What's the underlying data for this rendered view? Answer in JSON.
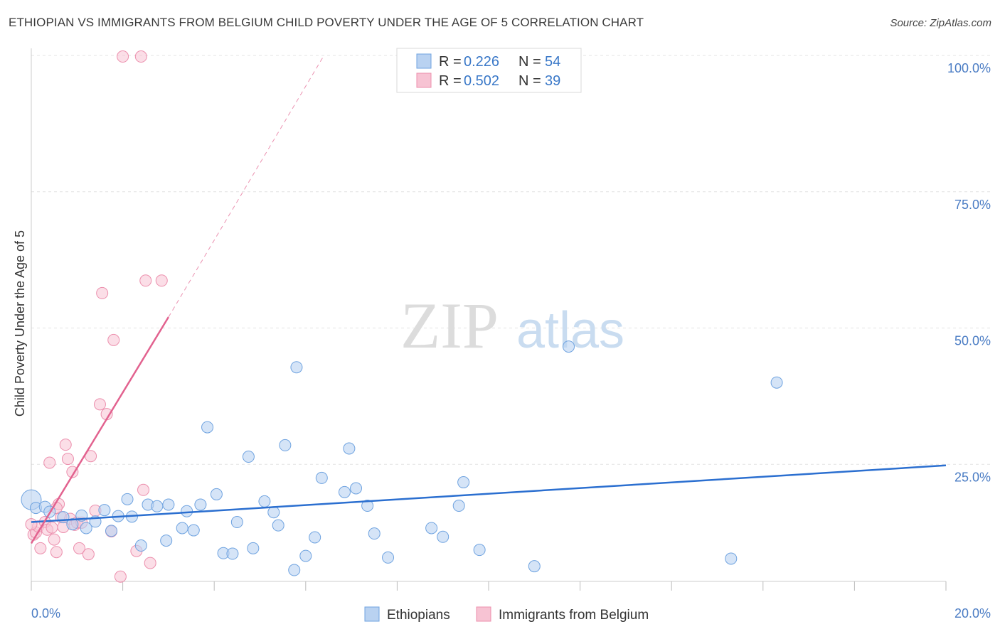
{
  "header": {
    "title": "ETHIOPIAN VS IMMIGRANTS FROM BELGIUM CHILD POVERTY UNDER THE AGE OF 5 CORRELATION CHART",
    "source": "Source: ZipAtlas.com"
  },
  "watermark": {
    "zip": "ZIP",
    "atlas": "atlas"
  },
  "chart_data": {
    "type": "scatter",
    "title": "ETHIOPIAN VS IMMIGRANTS FROM BELGIUM CHILD POVERTY UNDER THE AGE OF 5 CORRELATION CHART",
    "xlabel": "",
    "ylabel": "Child Poverty Under the Age of 5",
    "xlim": [
      0,
      20
    ],
    "ylim": [
      0,
      100
    ],
    "x_tick_labels": {
      "min": "0.0%",
      "max": "20.0%"
    },
    "y_tick_labels": [
      "25.0%",
      "50.0%",
      "75.0%",
      "100.0%"
    ],
    "y_tick_values": [
      25,
      50,
      75,
      100
    ],
    "colors": {
      "ethiopians": "#6fa3e0",
      "ethiopians_fill": "#b9d2f1",
      "ethiopians_line": "#2b6fd0",
      "belgium": "#ec8fad",
      "belgium_fill": "#f7c3d3",
      "belgium_line": "#e2628f",
      "tick_label": "#4a7cc4"
    },
    "legend": {
      "rows": [
        {
          "r_label": "R =",
          "r_value": "0.226",
          "n_label": "N =",
          "n_value": "54"
        },
        {
          "r_label": "R =",
          "r_value": "0.502",
          "n_label": "N =",
          "n_value": "39"
        }
      ]
    },
    "series": [
      {
        "name": "Ethiopians",
        "trend": {
          "x0": 0,
          "y0": 14.4,
          "x1": 20,
          "y1": 24.8
        },
        "points": [
          [
            0.0,
            18.5
          ],
          [
            0.1,
            17.0
          ],
          [
            0.3,
            17.2
          ],
          [
            0.4,
            16.3
          ],
          [
            0.7,
            15.3
          ],
          [
            0.9,
            14.0
          ],
          [
            1.1,
            15.6
          ],
          [
            1.2,
            13.3
          ],
          [
            1.4,
            14.5
          ],
          [
            1.6,
            16.6
          ],
          [
            1.75,
            12.8
          ],
          [
            1.9,
            15.5
          ],
          [
            2.1,
            18.6
          ],
          [
            2.2,
            15.4
          ],
          [
            2.4,
            10.1
          ],
          [
            2.55,
            17.6
          ],
          [
            2.75,
            17.3
          ],
          [
            2.95,
            11.0
          ],
          [
            3.0,
            17.6
          ],
          [
            3.3,
            13.3
          ],
          [
            3.4,
            16.4
          ],
          [
            3.55,
            12.9
          ],
          [
            3.7,
            17.6
          ],
          [
            3.85,
            31.8
          ],
          [
            4.05,
            19.5
          ],
          [
            4.2,
            8.7
          ],
          [
            4.4,
            8.6
          ],
          [
            4.5,
            14.4
          ],
          [
            4.75,
            26.4
          ],
          [
            4.85,
            9.6
          ],
          [
            5.1,
            18.2
          ],
          [
            5.3,
            16.2
          ],
          [
            5.4,
            13.8
          ],
          [
            5.55,
            28.5
          ],
          [
            5.75,
            5.6
          ],
          [
            5.8,
            42.8
          ],
          [
            6.0,
            8.2
          ],
          [
            6.2,
            11.6
          ],
          [
            6.35,
            22.5
          ],
          [
            6.85,
            19.9
          ],
          [
            6.95,
            27.9
          ],
          [
            7.1,
            20.6
          ],
          [
            7.35,
            17.4
          ],
          [
            7.5,
            12.3
          ],
          [
            7.8,
            7.9
          ],
          [
            8.75,
            13.3
          ],
          [
            9.0,
            11.7
          ],
          [
            9.35,
            17.4
          ],
          [
            9.45,
            21.7
          ],
          [
            9.8,
            9.3
          ],
          [
            11.0,
            6.3
          ],
          [
            11.75,
            46.6
          ],
          [
            15.3,
            7.7
          ],
          [
            16.3,
            40.0
          ]
        ]
      },
      {
        "name": "Immigrants from Belgium",
        "trend": {
          "x0": 0,
          "y0": 10.5,
          "x1": 3.0,
          "y1": 52.0
        },
        "trend_extension": {
          "x0": 3.0,
          "y0": 52.0,
          "x1": 6.4,
          "y1": 100
        },
        "points": [
          [
            0.05,
            12.1
          ],
          [
            0.1,
            12.5
          ],
          [
            0.15,
            13.6
          ],
          [
            0.2,
            9.6
          ],
          [
            0.3,
            14.4
          ],
          [
            0.35,
            13.0
          ],
          [
            0.4,
            25.3
          ],
          [
            0.45,
            13.4
          ],
          [
            0.5,
            11.2
          ],
          [
            0.55,
            8.9
          ],
          [
            0.6,
            17.7
          ],
          [
            0.65,
            15.3
          ],
          [
            0.7,
            13.5
          ],
          [
            0.75,
            28.6
          ],
          [
            0.8,
            26.0
          ],
          [
            0.85,
            15.0
          ],
          [
            0.9,
            23.6
          ],
          [
            0.95,
            13.9
          ],
          [
            1.0,
            14.3
          ],
          [
            1.05,
            9.6
          ],
          [
            1.1,
            14.3
          ],
          [
            1.25,
            8.5
          ],
          [
            1.3,
            26.5
          ],
          [
            1.4,
            16.5
          ],
          [
            1.5,
            36.0
          ],
          [
            1.55,
            56.4
          ],
          [
            1.65,
            34.2
          ],
          [
            1.75,
            12.7
          ],
          [
            1.8,
            47.8
          ],
          [
            1.95,
            4.4
          ],
          [
            2.0,
            99.8
          ],
          [
            2.3,
            9.1
          ],
          [
            2.4,
            99.8
          ],
          [
            2.45,
            20.3
          ],
          [
            2.5,
            58.7
          ],
          [
            2.6,
            6.9
          ],
          [
            2.85,
            58.7
          ],
          [
            0.55,
            17.0
          ],
          [
            0.0,
            14.0
          ]
        ]
      }
    ]
  }
}
